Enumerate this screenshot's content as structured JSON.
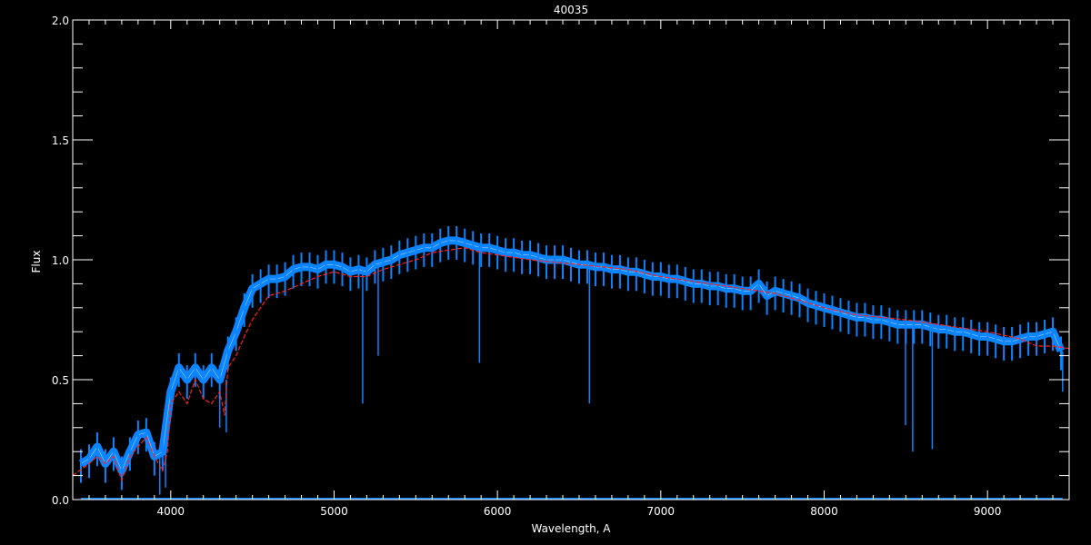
{
  "chart_data": {
    "type": "line",
    "title": "40035",
    "xlabel": "Wavelength, A",
    "ylabel": "Flux",
    "xlim": [
      3400,
      9500
    ],
    "ylim": [
      0,
      2.0
    ],
    "xticks": [
      4000,
      5000,
      6000,
      7000,
      8000,
      9000
    ],
    "yticks": [
      0.0,
      0.5,
      1.0,
      1.5,
      2.0
    ],
    "ytick_labels": [
      "0.0",
      "0.5",
      "1.0",
      "1.5",
      "2.0"
    ],
    "grid": false,
    "colors": {
      "observed": "#0a84ff",
      "model": "#ff2020",
      "axes": "#ffffff",
      "background": "#000000"
    },
    "series": [
      {
        "id": "observed",
        "x": [
          3450,
          3500,
          3550,
          3600,
          3650,
          3700,
          3750,
          3800,
          3850,
          3900,
          3950,
          4000,
          4050,
          4100,
          4150,
          4200,
          4250,
          4300,
          4350,
          4400,
          4450,
          4500,
          4550,
          4600,
          4650,
          4700,
          4750,
          4800,
          4850,
          4900,
          4950,
          5000,
          5050,
          5100,
          5150,
          5200,
          5250,
          5300,
          5350,
          5400,
          5450,
          5500,
          5550,
          5600,
          5650,
          5700,
          5750,
          5800,
          5850,
          5900,
          5950,
          6000,
          6050,
          6100,
          6150,
          6200,
          6250,
          6300,
          6350,
          6400,
          6450,
          6500,
          6550,
          6600,
          6650,
          6700,
          6750,
          6800,
          6850,
          6900,
          6950,
          7000,
          7050,
          7100,
          7150,
          7200,
          7250,
          7300,
          7350,
          7400,
          7450,
          7500,
          7550,
          7600,
          7650,
          7700,
          7750,
          7800,
          7850,
          7900,
          7950,
          8000,
          8050,
          8100,
          8150,
          8200,
          8250,
          8300,
          8350,
          8400,
          8450,
          8500,
          8550,
          8600,
          8650,
          8700,
          8750,
          8800,
          8850,
          8900,
          8950,
          9000,
          9050,
          9100,
          9150,
          9200,
          9250,
          9300,
          9350,
          9400,
          9450
        ],
        "y": [
          0.15,
          0.17,
          0.22,
          0.15,
          0.2,
          0.12,
          0.2,
          0.27,
          0.28,
          0.18,
          0.2,
          0.45,
          0.55,
          0.5,
          0.55,
          0.5,
          0.55,
          0.5,
          0.62,
          0.7,
          0.8,
          0.88,
          0.9,
          0.92,
          0.92,
          0.93,
          0.96,
          0.97,
          0.97,
          0.96,
          0.98,
          0.98,
          0.97,
          0.95,
          0.96,
          0.95,
          0.98,
          0.99,
          1.0,
          1.02,
          1.03,
          1.04,
          1.05,
          1.05,
          1.07,
          1.08,
          1.08,
          1.07,
          1.06,
          1.05,
          1.05,
          1.04,
          1.03,
          1.03,
          1.02,
          1.02,
          1.01,
          1.0,
          1.0,
          1.0,
          0.99,
          0.98,
          0.98,
          0.97,
          0.97,
          0.96,
          0.96,
          0.95,
          0.95,
          0.94,
          0.93,
          0.93,
          0.92,
          0.92,
          0.91,
          0.9,
          0.9,
          0.89,
          0.89,
          0.88,
          0.88,
          0.87,
          0.87,
          0.9,
          0.85,
          0.87,
          0.86,
          0.85,
          0.84,
          0.82,
          0.81,
          0.8,
          0.79,
          0.78,
          0.77,
          0.76,
          0.76,
          0.75,
          0.75,
          0.74,
          0.73,
          0.73,
          0.73,
          0.73,
          0.72,
          0.71,
          0.71,
          0.7,
          0.7,
          0.69,
          0.68,
          0.68,
          0.67,
          0.66,
          0.66,
          0.67,
          0.68,
          0.68,
          0.69,
          0.7,
          0.62
        ]
      },
      {
        "id": "observed-absorption-lines",
        "x": [
          3933,
          3968,
          4300,
          4340,
          5175,
          5270,
          5890,
          6563,
          8498,
          8542,
          8662,
          9460
        ],
        "y": [
          0.02,
          0.05,
          0.3,
          0.28,
          0.4,
          0.6,
          0.57,
          0.4,
          0.31,
          0.2,
          0.21,
          0.45
        ]
      },
      {
        "id": "model",
        "x": [
          3400,
          3500,
          3550,
          3600,
          3650,
          3700,
          3750,
          3800,
          3850,
          3900,
          3950,
          3980,
          4000,
          4050,
          4100,
          4150,
          4200,
          4250,
          4300,
          4330,
          4350,
          4400,
          4450,
          4500,
          4600,
          4700,
          4800,
          4900,
          5000,
          5100,
          5200,
          5300,
          5400,
          5500,
          5600,
          5700,
          5800,
          5900,
          6000,
          6200,
          6500,
          6800,
          7000,
          7200,
          7500,
          7600,
          7700,
          7800,
          8000,
          8200,
          8500,
          8700,
          9000,
          9200,
          9300,
          9400,
          9500
        ],
        "y": [
          0.1,
          0.15,
          0.18,
          0.15,
          0.18,
          0.08,
          0.18,
          0.22,
          0.26,
          0.18,
          0.12,
          0.2,
          0.4,
          0.45,
          0.4,
          0.5,
          0.42,
          0.4,
          0.45,
          0.35,
          0.55,
          0.6,
          0.68,
          0.75,
          0.85,
          0.87,
          0.9,
          0.93,
          0.95,
          0.93,
          0.93,
          0.96,
          0.98,
          1.0,
          1.03,
          1.04,
          1.05,
          1.03,
          1.02,
          1.0,
          0.98,
          0.96,
          0.93,
          0.91,
          0.88,
          0.87,
          0.86,
          0.84,
          0.8,
          0.77,
          0.75,
          0.73,
          0.7,
          0.67,
          0.64,
          0.64,
          0.63
        ]
      },
      {
        "id": "error",
        "x": [
          3450,
          9460
        ],
        "y": [
          0.005,
          0.005
        ]
      }
    ]
  }
}
